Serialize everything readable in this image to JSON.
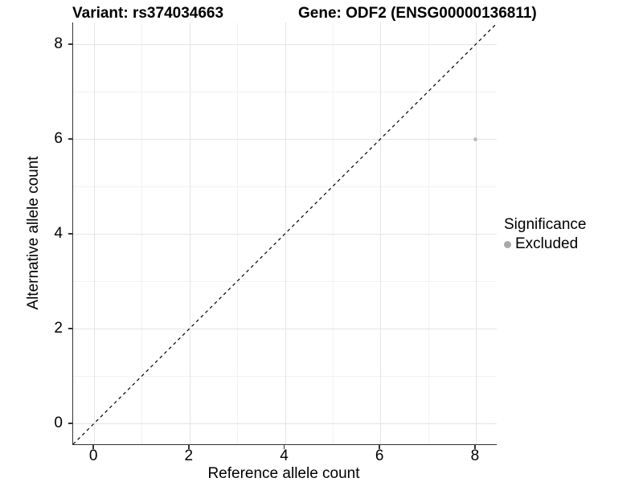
{
  "header": {
    "title_left": "Variant: rs374034663",
    "title_right": "Gene: ODF2 (ENSG00000136811)"
  },
  "chart_data": {
    "type": "scatter",
    "title_left": "Variant: rs374034663",
    "title_right": "Gene: ODF2 (ENSG00000136811)",
    "xlabel": "Reference allele count",
    "ylabel": "Alternative allele count",
    "xlim": [
      -0.44,
      8.44
    ],
    "ylim": [
      -0.44,
      8.46
    ],
    "xticks": [
      0,
      2,
      4,
      6,
      8
    ],
    "yticks": [
      0,
      2,
      4,
      6,
      8
    ],
    "minor_xticks": [
      1,
      3,
      5,
      7
    ],
    "minor_yticks": [
      1,
      3,
      5,
      7
    ],
    "grid": true,
    "points": [
      {
        "x": 8,
        "y": 6,
        "significance": "Excluded"
      }
    ],
    "point_radius_px": 2.6,
    "reference_line": {
      "kind": "identity y=x",
      "style": "dashed",
      "color": "#000000",
      "dash": "4,4"
    },
    "legend": {
      "position": "right",
      "title": "Significance",
      "entries": [
        {
          "label": "Excluded",
          "color": "#a9a9a9"
        }
      ]
    },
    "colors": {
      "point": "#bdbdbd",
      "axis_line": "#333333",
      "grid_major": "#e4e4e4",
      "grid_minor": "#f2f2f2",
      "background": "#ffffff",
      "text": "#000000"
    }
  }
}
